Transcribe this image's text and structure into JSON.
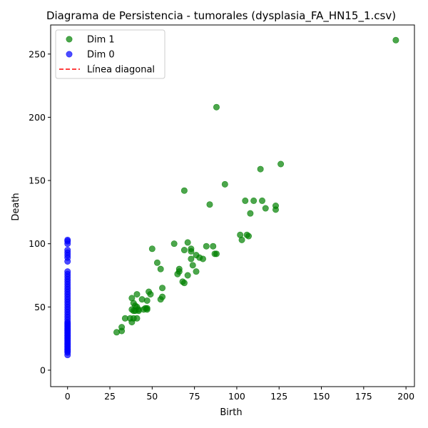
{
  "chart_data": {
    "type": "scatter",
    "title": "Diagrama de Persistencia - tumorales (dysplasia_FA_HN15_1.csv)",
    "xlabel": "Birth",
    "ylabel": "Death",
    "xlim": [
      -10,
      205
    ],
    "ylim": [
      -13,
      273
    ],
    "xticks": [
      0,
      25,
      50,
      75,
      100,
      125,
      150,
      175,
      200
    ],
    "yticks": [
      0,
      50,
      100,
      150,
      200,
      250
    ],
    "grid": false,
    "legend_position": "top-left",
    "series": [
      {
        "name": "Dim 1",
        "color": "#008000",
        "points": [
          [
            194,
            261
          ],
          [
            88,
            208
          ],
          [
            126,
            163
          ],
          [
            114,
            159
          ],
          [
            69,
            142
          ],
          [
            93,
            147
          ],
          [
            84,
            131
          ],
          [
            105,
            134
          ],
          [
            110,
            134
          ],
          [
            115,
            134
          ],
          [
            123,
            130
          ],
          [
            117,
            128
          ],
          [
            123,
            127
          ],
          [
            108,
            124
          ],
          [
            102,
            107
          ],
          [
            106,
            107
          ],
          [
            107,
            106
          ],
          [
            103,
            103
          ],
          [
            63,
            100
          ],
          [
            71,
            101
          ],
          [
            50,
            96
          ],
          [
            69,
            95
          ],
          [
            73,
            96
          ],
          [
            73,
            94
          ],
          [
            82,
            98
          ],
          [
            86,
            98
          ],
          [
            87,
            92
          ],
          [
            88,
            92
          ],
          [
            76,
            91
          ],
          [
            78,
            89
          ],
          [
            80,
            88
          ],
          [
            73,
            88
          ],
          [
            53,
            85
          ],
          [
            74,
            83
          ],
          [
            55,
            80
          ],
          [
            66,
            80
          ],
          [
            66,
            78
          ],
          [
            76,
            78
          ],
          [
            65,
            76
          ],
          [
            71,
            75
          ],
          [
            68,
            70
          ],
          [
            69,
            69
          ],
          [
            56,
            65
          ],
          [
            48,
            62
          ],
          [
            49,
            60
          ],
          [
            38,
            57
          ],
          [
            41,
            60
          ],
          [
            56,
            58
          ],
          [
            44,
            56
          ],
          [
            47,
            55
          ],
          [
            55,
            56
          ],
          [
            39,
            53
          ],
          [
            40,
            51
          ],
          [
            41,
            50
          ],
          [
            38,
            48
          ],
          [
            42,
            48
          ],
          [
            45,
            48
          ],
          [
            46,
            49
          ],
          [
            47,
            49
          ],
          [
            47,
            48
          ],
          [
            39,
            47
          ],
          [
            40,
            47
          ],
          [
            42,
            47
          ],
          [
            37,
            41
          ],
          [
            34,
            41
          ],
          [
            39,
            41
          ],
          [
            41,
            41
          ],
          [
            38,
            38
          ],
          [
            32,
            34
          ],
          [
            32,
            31
          ],
          [
            29,
            30
          ]
        ]
      },
      {
        "name": "Dim 0",
        "color": "#0000ff",
        "points": [
          [
            0,
            103
          ],
          [
            0,
            102
          ],
          [
            0,
            100
          ],
          [
            0,
            95
          ],
          [
            0,
            93
          ],
          [
            0,
            91
          ],
          [
            0,
            89
          ],
          [
            0,
            86
          ],
          [
            0,
            78
          ],
          [
            0,
            76
          ],
          [
            0,
            74
          ],
          [
            0,
            72
          ],
          [
            0,
            70
          ],
          [
            0,
            68
          ],
          [
            0,
            66
          ],
          [
            0,
            64
          ],
          [
            0,
            62
          ],
          [
            0,
            60
          ],
          [
            0,
            58
          ],
          [
            0,
            56
          ],
          [
            0,
            54
          ],
          [
            0,
            52
          ],
          [
            0,
            50
          ],
          [
            0,
            48
          ],
          [
            0,
            46
          ],
          [
            0,
            44
          ],
          [
            0,
            42
          ],
          [
            0,
            40
          ],
          [
            0,
            38
          ],
          [
            0,
            37
          ],
          [
            0,
            36
          ],
          [
            0,
            35
          ],
          [
            0,
            34
          ],
          [
            0,
            33
          ],
          [
            0,
            32
          ],
          [
            0,
            31
          ],
          [
            0,
            30
          ],
          [
            0,
            29
          ],
          [
            0,
            28
          ],
          [
            0,
            27
          ],
          [
            0,
            26
          ],
          [
            0,
            25
          ],
          [
            0,
            24
          ],
          [
            0,
            23
          ],
          [
            0,
            22
          ],
          [
            0,
            21
          ],
          [
            0,
            20
          ],
          [
            0,
            19
          ],
          [
            0,
            18
          ],
          [
            0,
            17
          ],
          [
            0,
            16
          ],
          [
            0,
            15
          ],
          [
            0,
            14
          ],
          [
            0,
            12
          ]
        ]
      },
      {
        "name": "Línea diagonal",
        "color": "#ff0000",
        "style": "dashed",
        "points": []
      }
    ]
  }
}
